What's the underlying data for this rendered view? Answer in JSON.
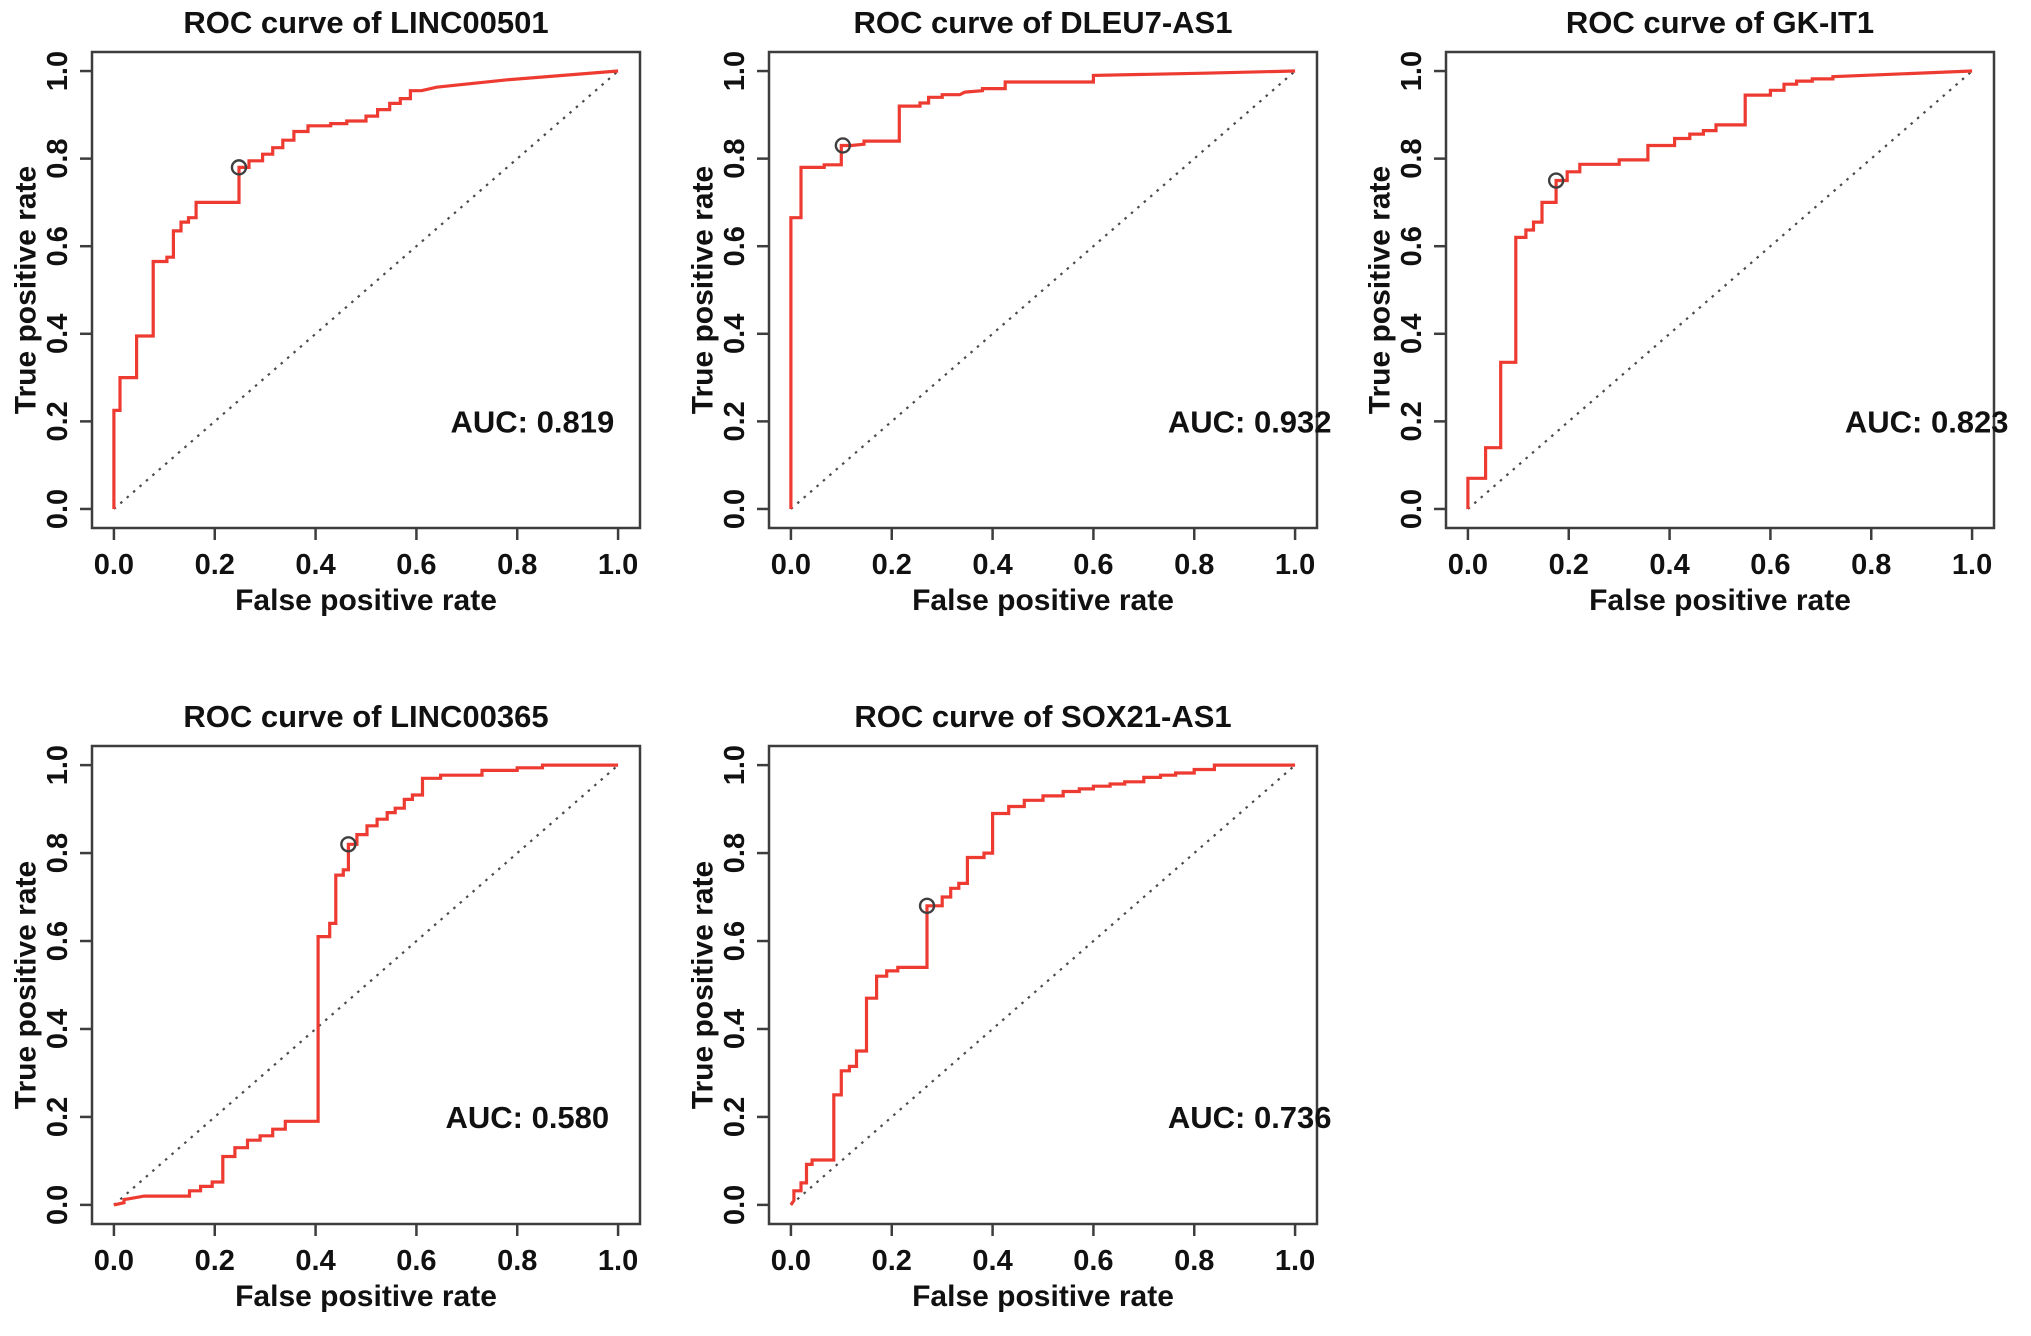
{
  "figure": {
    "description": "Five ROC curve panels",
    "panels_per_row": 3,
    "style": {
      "curve_color": "#ee3b32",
      "diagonal_color": "#4a4a4a",
      "frame_color": "#3d3d3d",
      "text_color": "#111111",
      "marker_stroke": "#3f3f3f",
      "background": "#ffffff"
    }
  },
  "chart_data": [
    {
      "type": "line",
      "subtype": "roc-step",
      "title": "ROC curve of LINC00501",
      "xlabel": "False positive rate",
      "ylabel": "True positive rate",
      "auc_label": "AUC: 0.819",
      "auc_pos": {
        "x": 0.83,
        "y": 0.2
      },
      "xlim": [
        0,
        1
      ],
      "ylim": [
        0,
        1
      ],
      "xticks": [
        0.0,
        0.2,
        0.4,
        0.6,
        0.8,
        1.0
      ],
      "yticks": [
        0.0,
        0.2,
        0.4,
        0.6,
        0.8,
        1.0
      ],
      "xtick_labels": [
        "0.0",
        "0.2",
        "0.4",
        "0.6",
        "0.8",
        "1.0"
      ],
      "ytick_labels": [
        "0.0",
        "0.2",
        "0.4",
        "0.6",
        "0.8",
        "1.0"
      ],
      "grid": "off",
      "diagonal_reference": true,
      "marker": {
        "x": 0.248,
        "y": 0.78
      },
      "roc_points": [
        [
          0,
          0
        ],
        [
          0,
          0.225
        ],
        [
          0.012,
          0.225
        ],
        [
          0.012,
          0.3
        ],
        [
          0.045,
          0.3
        ],
        [
          0.045,
          0.395
        ],
        [
          0.078,
          0.395
        ],
        [
          0.078,
          0.565
        ],
        [
          0.105,
          0.565
        ],
        [
          0.105,
          0.575
        ],
        [
          0.118,
          0.575
        ],
        [
          0.118,
          0.635
        ],
        [
          0.133,
          0.635
        ],
        [
          0.133,
          0.655
        ],
        [
          0.148,
          0.655
        ],
        [
          0.148,
          0.665
        ],
        [
          0.163,
          0.665
        ],
        [
          0.163,
          0.7
        ],
        [
          0.248,
          0.7
        ],
        [
          0.248,
          0.78
        ],
        [
          0.268,
          0.78
        ],
        [
          0.268,
          0.795
        ],
        [
          0.295,
          0.795
        ],
        [
          0.295,
          0.81
        ],
        [
          0.315,
          0.81
        ],
        [
          0.315,
          0.825
        ],
        [
          0.335,
          0.825
        ],
        [
          0.335,
          0.842
        ],
        [
          0.357,
          0.842
        ],
        [
          0.357,
          0.862
        ],
        [
          0.385,
          0.862
        ],
        [
          0.385,
          0.875
        ],
        [
          0.43,
          0.875
        ],
        [
          0.43,
          0.88
        ],
        [
          0.462,
          0.88
        ],
        [
          0.462,
          0.886
        ],
        [
          0.5,
          0.886
        ],
        [
          0.5,
          0.897
        ],
        [
          0.523,
          0.897
        ],
        [
          0.523,
          0.912
        ],
        [
          0.547,
          0.912
        ],
        [
          0.547,
          0.926
        ],
        [
          0.568,
          0.926
        ],
        [
          0.568,
          0.937
        ],
        [
          0.588,
          0.937
        ],
        [
          0.588,
          0.955
        ],
        [
          0.61,
          0.955
        ],
        [
          0.64,
          0.963
        ],
        [
          0.78,
          0.98
        ],
        [
          1,
          1
        ]
      ]
    },
    {
      "type": "line",
      "subtype": "roc-step",
      "title": "ROC curve of DLEU7-AS1",
      "xlabel": "False positive rate",
      "ylabel": "True positive rate",
      "auc_label": "AUC: 0.932",
      "auc_pos": {
        "x": 0.91,
        "y": 0.2
      },
      "xlim": [
        0,
        1
      ],
      "ylim": [
        0,
        1
      ],
      "xticks": [
        0.0,
        0.2,
        0.4,
        0.6,
        0.8,
        1.0
      ],
      "yticks": [
        0.0,
        0.2,
        0.4,
        0.6,
        0.8,
        1.0
      ],
      "xtick_labels": [
        "0.0",
        "0.2",
        "0.4",
        "0.6",
        "0.8",
        "1.0"
      ],
      "ytick_labels": [
        "0.0",
        "0.2",
        "0.4",
        "0.6",
        "0.8",
        "1.0"
      ],
      "grid": "off",
      "diagonal_reference": true,
      "marker": {
        "x": 0.103,
        "y": 0.83
      },
      "roc_points": [
        [
          0,
          0
        ],
        [
          0,
          0.665
        ],
        [
          0.02,
          0.665
        ],
        [
          0.02,
          0.78
        ],
        [
          0.066,
          0.78
        ],
        [
          0.066,
          0.786
        ],
        [
          0.1,
          0.786
        ],
        [
          0.1,
          0.83
        ],
        [
          0.12,
          0.83
        ],
        [
          0.145,
          0.833
        ],
        [
          0.145,
          0.84
        ],
        [
          0.215,
          0.84
        ],
        [
          0.215,
          0.92
        ],
        [
          0.256,
          0.92
        ],
        [
          0.256,
          0.927
        ],
        [
          0.273,
          0.927
        ],
        [
          0.273,
          0.94
        ],
        [
          0.3,
          0.94
        ],
        [
          0.3,
          0.946
        ],
        [
          0.335,
          0.946
        ],
        [
          0.345,
          0.952
        ],
        [
          0.38,
          0.955
        ],
        [
          0.38,
          0.96
        ],
        [
          0.425,
          0.96
        ],
        [
          0.425,
          0.975
        ],
        [
          0.6,
          0.975
        ],
        [
          0.6,
          0.99
        ],
        [
          0.82,
          0.995
        ],
        [
          1,
          1
        ]
      ]
    },
    {
      "type": "line",
      "subtype": "roc-step",
      "title": "ROC curve of GK-IT1",
      "xlabel": "False positive rate",
      "ylabel": "True positive rate",
      "auc_label": "AUC: 0.823",
      "auc_pos": {
        "x": 0.91,
        "y": 0.2
      },
      "xlim": [
        0,
        1
      ],
      "ylim": [
        0,
        1
      ],
      "xticks": [
        0.0,
        0.2,
        0.4,
        0.6,
        0.8,
        1.0
      ],
      "yticks": [
        0.0,
        0.2,
        0.4,
        0.6,
        0.8,
        1.0
      ],
      "xtick_labels": [
        "0.0",
        "0.2",
        "0.4",
        "0.6",
        "0.8",
        "1.0"
      ],
      "ytick_labels": [
        "0.0",
        "0.2",
        "0.4",
        "0.6",
        "0.8",
        "1.0"
      ],
      "grid": "off",
      "diagonal_reference": true,
      "marker": {
        "x": 0.175,
        "y": 0.75
      },
      "roc_points": [
        [
          0,
          0
        ],
        [
          0,
          0.07
        ],
        [
          0.035,
          0.07
        ],
        [
          0.035,
          0.14
        ],
        [
          0.065,
          0.14
        ],
        [
          0.065,
          0.335
        ],
        [
          0.095,
          0.335
        ],
        [
          0.095,
          0.62
        ],
        [
          0.115,
          0.62
        ],
        [
          0.115,
          0.637
        ],
        [
          0.13,
          0.637
        ],
        [
          0.13,
          0.655
        ],
        [
          0.147,
          0.655
        ],
        [
          0.147,
          0.7
        ],
        [
          0.175,
          0.7
        ],
        [
          0.175,
          0.75
        ],
        [
          0.197,
          0.75
        ],
        [
          0.197,
          0.77
        ],
        [
          0.222,
          0.77
        ],
        [
          0.222,
          0.787
        ],
        [
          0.3,
          0.787
        ],
        [
          0.3,
          0.797
        ],
        [
          0.357,
          0.797
        ],
        [
          0.357,
          0.83
        ],
        [
          0.41,
          0.83
        ],
        [
          0.41,
          0.846
        ],
        [
          0.44,
          0.846
        ],
        [
          0.44,
          0.856
        ],
        [
          0.467,
          0.856
        ],
        [
          0.467,
          0.864
        ],
        [
          0.492,
          0.864
        ],
        [
          0.492,
          0.877
        ],
        [
          0.55,
          0.877
        ],
        [
          0.55,
          0.945
        ],
        [
          0.6,
          0.945
        ],
        [
          0.6,
          0.956
        ],
        [
          0.627,
          0.956
        ],
        [
          0.627,
          0.97
        ],
        [
          0.652,
          0.97
        ],
        [
          0.652,
          0.977
        ],
        [
          0.683,
          0.977
        ],
        [
          0.683,
          0.982
        ],
        [
          0.724,
          0.982
        ],
        [
          0.724,
          0.987
        ],
        [
          1,
          1
        ]
      ]
    },
    {
      "type": "line",
      "subtype": "roc-step",
      "title": "ROC curve of LINC00365",
      "xlabel": "False positive rate",
      "ylabel": "True positive rate",
      "auc_label": "AUC: 0.580",
      "auc_pos": {
        "x": 0.82,
        "y": 0.2
      },
      "xlim": [
        0,
        1
      ],
      "ylim": [
        0,
        1
      ],
      "xticks": [
        0.0,
        0.2,
        0.4,
        0.6,
        0.8,
        1.0
      ],
      "yticks": [
        0.0,
        0.2,
        0.4,
        0.6,
        0.8,
        1.0
      ],
      "xtick_labels": [
        "0.0",
        "0.2",
        "0.4",
        "0.6",
        "0.8",
        "1.0"
      ],
      "ytick_labels": [
        "0.0",
        "0.2",
        "0.4",
        "0.6",
        "0.8",
        "1.0"
      ],
      "grid": "off",
      "diagonal_reference": true,
      "marker": {
        "x": 0.465,
        "y": 0.82
      },
      "roc_points": [
        [
          0,
          0
        ],
        [
          0.02,
          0.005
        ],
        [
          0.02,
          0.012
        ],
        [
          0.06,
          0.02
        ],
        [
          0.15,
          0.02
        ],
        [
          0.15,
          0.032
        ],
        [
          0.172,
          0.032
        ],
        [
          0.172,
          0.042
        ],
        [
          0.195,
          0.042
        ],
        [
          0.195,
          0.052
        ],
        [
          0.216,
          0.052
        ],
        [
          0.216,
          0.11
        ],
        [
          0.24,
          0.11
        ],
        [
          0.24,
          0.13
        ],
        [
          0.265,
          0.13
        ],
        [
          0.265,
          0.147
        ],
        [
          0.29,
          0.147
        ],
        [
          0.29,
          0.157
        ],
        [
          0.315,
          0.157
        ],
        [
          0.315,
          0.172
        ],
        [
          0.34,
          0.172
        ],
        [
          0.34,
          0.19
        ],
        [
          0.405,
          0.19
        ],
        [
          0.405,
          0.61
        ],
        [
          0.428,
          0.61
        ],
        [
          0.428,
          0.64
        ],
        [
          0.44,
          0.64
        ],
        [
          0.44,
          0.75
        ],
        [
          0.455,
          0.75
        ],
        [
          0.455,
          0.762
        ],
        [
          0.465,
          0.762
        ],
        [
          0.465,
          0.82
        ],
        [
          0.482,
          0.82
        ],
        [
          0.482,
          0.842
        ],
        [
          0.502,
          0.842
        ],
        [
          0.502,
          0.862
        ],
        [
          0.522,
          0.862
        ],
        [
          0.522,
          0.877
        ],
        [
          0.542,
          0.877
        ],
        [
          0.542,
          0.892
        ],
        [
          0.558,
          0.892
        ],
        [
          0.558,
          0.902
        ],
        [
          0.576,
          0.902
        ],
        [
          0.576,
          0.922
        ],
        [
          0.592,
          0.922
        ],
        [
          0.592,
          0.932
        ],
        [
          0.612,
          0.932
        ],
        [
          0.612,
          0.97
        ],
        [
          0.648,
          0.97
        ],
        [
          0.648,
          0.977
        ],
        [
          0.73,
          0.977
        ],
        [
          0.73,
          0.988
        ],
        [
          0.8,
          0.988
        ],
        [
          0.8,
          0.994
        ],
        [
          0.85,
          0.994
        ],
        [
          0.85,
          1
        ],
        [
          1,
          1
        ]
      ]
    },
    {
      "type": "line",
      "subtype": "roc-step",
      "title": "ROC curve of SOX21-AS1",
      "xlabel": "False positive rate",
      "ylabel": "True positive rate",
      "auc_label": "AUC: 0.736",
      "auc_pos": {
        "x": 0.91,
        "y": 0.2
      },
      "xlim": [
        0,
        1
      ],
      "ylim": [
        0,
        1
      ],
      "xticks": [
        0.0,
        0.2,
        0.4,
        0.6,
        0.8,
        1.0
      ],
      "yticks": [
        0.0,
        0.2,
        0.4,
        0.6,
        0.8,
        1.0
      ],
      "xtick_labels": [
        "0.0",
        "0.2",
        "0.4",
        "0.6",
        "0.8",
        "1.0"
      ],
      "ytick_labels": [
        "0.0",
        "0.2",
        "0.4",
        "0.6",
        "0.8",
        "1.0"
      ],
      "grid": "off",
      "diagonal_reference": true,
      "marker": {
        "x": 0.27,
        "y": 0.68
      },
      "roc_points": [
        [
          0,
          0
        ],
        [
          0.006,
          0.01
        ],
        [
          0.006,
          0.032
        ],
        [
          0.02,
          0.032
        ],
        [
          0.02,
          0.05
        ],
        [
          0.031,
          0.05
        ],
        [
          0.031,
          0.092
        ],
        [
          0.042,
          0.092
        ],
        [
          0.042,
          0.102
        ],
        [
          0.085,
          0.102
        ],
        [
          0.085,
          0.25
        ],
        [
          0.1,
          0.25
        ],
        [
          0.1,
          0.305
        ],
        [
          0.116,
          0.305
        ],
        [
          0.116,
          0.315
        ],
        [
          0.13,
          0.315
        ],
        [
          0.13,
          0.35
        ],
        [
          0.15,
          0.35
        ],
        [
          0.15,
          0.47
        ],
        [
          0.17,
          0.47
        ],
        [
          0.17,
          0.52
        ],
        [
          0.19,
          0.52
        ],
        [
          0.19,
          0.532
        ],
        [
          0.212,
          0.532
        ],
        [
          0.212,
          0.54
        ],
        [
          0.27,
          0.54
        ],
        [
          0.27,
          0.68
        ],
        [
          0.3,
          0.68
        ],
        [
          0.3,
          0.7
        ],
        [
          0.317,
          0.7
        ],
        [
          0.317,
          0.72
        ],
        [
          0.333,
          0.72
        ],
        [
          0.333,
          0.731
        ],
        [
          0.35,
          0.731
        ],
        [
          0.35,
          0.79
        ],
        [
          0.383,
          0.79
        ],
        [
          0.383,
          0.8
        ],
        [
          0.4,
          0.8
        ],
        [
          0.4,
          0.89
        ],
        [
          0.432,
          0.89
        ],
        [
          0.432,
          0.906
        ],
        [
          0.463,
          0.906
        ],
        [
          0.463,
          0.92
        ],
        [
          0.5,
          0.92
        ],
        [
          0.5,
          0.93
        ],
        [
          0.54,
          0.93
        ],
        [
          0.54,
          0.94
        ],
        [
          0.572,
          0.94
        ],
        [
          0.572,
          0.946
        ],
        [
          0.6,
          0.946
        ],
        [
          0.6,
          0.952
        ],
        [
          0.633,
          0.952
        ],
        [
          0.633,
          0.957
        ],
        [
          0.662,
          0.957
        ],
        [
          0.662,
          0.962
        ],
        [
          0.7,
          0.962
        ],
        [
          0.7,
          0.972
        ],
        [
          0.733,
          0.972
        ],
        [
          0.733,
          0.977
        ],
        [
          0.763,
          0.977
        ],
        [
          0.763,
          0.982
        ],
        [
          0.8,
          0.982
        ],
        [
          0.8,
          0.99
        ],
        [
          0.84,
          0.99
        ],
        [
          0.84,
          1
        ],
        [
          0.93,
          1
        ],
        [
          1,
          1
        ]
      ]
    }
  ]
}
